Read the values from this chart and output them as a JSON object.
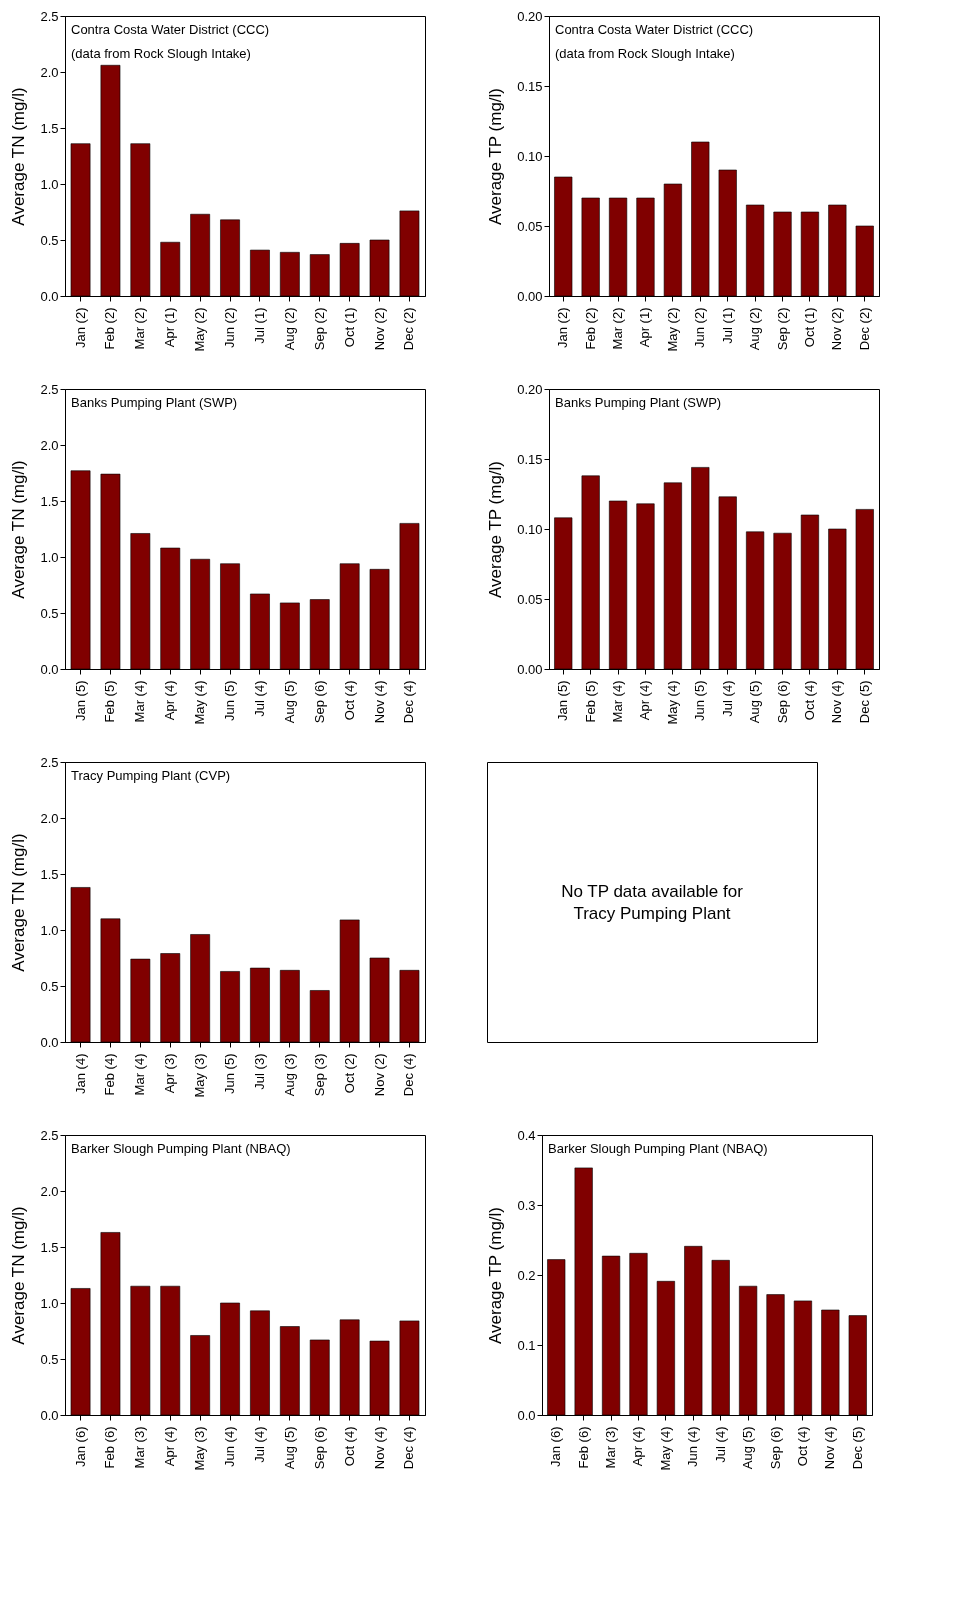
{
  "chart_data": [
    {
      "type": "bar",
      "title": "Contra Costa Water District (CCC)",
      "subtitle": "(data from Rock Slough Intake)",
      "ylabel": "Average TN (mg/l)",
      "categories": [
        "Jan (2)",
        "Feb (2)",
        "Mar (2)",
        "Apr (1)",
        "May (2)",
        "Jun (2)",
        "Jul (1)",
        "Aug (2)",
        "Sep (2)",
        "Oct (1)",
        "Nov (2)",
        "Dec (2)"
      ],
      "values": [
        1.36,
        2.06,
        1.36,
        0.48,
        0.73,
        0.68,
        0.41,
        0.39,
        0.37,
        0.47,
        0.5,
        0.76
      ],
      "color": "#800000",
      "ylim": [
        0,
        2.5
      ],
      "yticks": [
        {
          "value": 0,
          "label": "0.0"
        },
        0.5,
        {
          "value": 1,
          "label": "1.0"
        },
        1.5,
        {
          "value": 2,
          "label": "2.0"
        },
        2.5
      ],
      "grid": false
    },
    {
      "type": "bar",
      "title": "Contra Costa Water District (CCC)",
      "subtitle": "(data from Rock Slough Intake)",
      "ylabel": "Average TP (mg/l)",
      "categories": [
        "Jan (2)",
        "Feb (2)",
        "Mar (2)",
        "Apr (1)",
        "May (2)",
        "Jun (2)",
        "Jul (1)",
        "Aug (2)",
        "Sep (2)",
        "Oct (1)",
        "Nov (2)",
        "Dec (2)"
      ],
      "values": [
        0.085,
        0.07,
        0.07,
        0.07,
        0.08,
        0.11,
        0.09,
        0.065,
        0.06,
        0.06,
        0.065,
        0.05
      ],
      "color": "#800000",
      "ylim": [
        0,
        0.2
      ],
      "yticks": [
        {
          "value": 0,
          "label": "0.00"
        },
        0.05,
        {
          "value": 0.1,
          "label": "0.10"
        },
        0.15,
        {
          "value": 0.2,
          "label": "0.20"
        }
      ],
      "grid": false
    },
    {
      "type": "bar",
      "title": "Banks Pumping Plant (SWP)",
      "ylabel": "Average TN (mg/l)",
      "categories": [
        "Jan (5)",
        "Feb (5)",
        "Mar (4)",
        "Apr (4)",
        "May (4)",
        "Jun (5)",
        "Jul (4)",
        "Aug (5)",
        "Sep (6)",
        "Oct (4)",
        "Nov (4)",
        "Dec (4)"
      ],
      "values": [
        1.77,
        1.74,
        1.21,
        1.08,
        0.98,
        0.94,
        0.67,
        0.59,
        0.62,
        0.94,
        0.89,
        1.3
      ],
      "color": "#800000",
      "ylim": [
        0,
        2.5
      ],
      "yticks": [
        {
          "value": 0,
          "label": "0.0"
        },
        0.5,
        {
          "value": 1,
          "label": "1.0"
        },
        1.5,
        {
          "value": 2,
          "label": "2.0"
        },
        2.5
      ],
      "grid": false
    },
    {
      "type": "bar",
      "title": "Banks Pumping Plant (SWP)",
      "ylabel": "Average TP (mg/l)",
      "categories": [
        "Jan (5)",
        "Feb (5)",
        "Mar (4)",
        "Apr (4)",
        "May (4)",
        "Jun (5)",
        "Jul (4)",
        "Aug (5)",
        "Sep (6)",
        "Oct (4)",
        "Nov (4)",
        "Dec (5)"
      ],
      "values": [
        0.108,
        0.138,
        0.12,
        0.118,
        0.133,
        0.144,
        0.123,
        0.098,
        0.097,
        0.11,
        0.1,
        0.114
      ],
      "color": "#800000",
      "ylim": [
        0,
        0.2
      ],
      "yticks": [
        {
          "value": 0,
          "label": "0.00"
        },
        0.05,
        {
          "value": 0.1,
          "label": "0.10"
        },
        0.15,
        {
          "value": 0.2,
          "label": "0.20"
        }
      ],
      "grid": false
    },
    {
      "type": "bar",
      "title": "Tracy Pumping Plant (CVP)",
      "ylabel": "Average TN (mg/l)",
      "categories": [
        "Jan (4)",
        "Feb (4)",
        "Mar (4)",
        "Apr (3)",
        "May (3)",
        "Jun (5)",
        "Jul (3)",
        "Aug (3)",
        "Sep (3)",
        "Oct (2)",
        "Nov (2)",
        "Dec (4)"
      ],
      "values": [
        1.38,
        1.1,
        0.74,
        0.79,
        0.96,
        0.63,
        0.66,
        0.64,
        0.46,
        1.09,
        0.75,
        0.64
      ],
      "color": "#800000",
      "ylim": [
        0,
        2.5
      ],
      "yticks": [
        {
          "value": 0,
          "label": "0.0"
        },
        0.5,
        {
          "value": 1,
          "label": "1.0"
        },
        1.5,
        {
          "value": 2,
          "label": "2.0"
        },
        2.5
      ],
      "grid": false
    },
    {
      "type": "other",
      "annotations": [
        "No TP data available for",
        "Tracy Pumping Plant"
      ]
    },
    {
      "type": "bar",
      "title": "Barker Slough Pumping Plant (NBAQ)",
      "ylabel": "Average TN (mg/l)",
      "categories": [
        "Jan (6)",
        "Feb (6)",
        "Mar (3)",
        "Apr (4)",
        "May (3)",
        "Jun (4)",
        "Jul (4)",
        "Aug (5)",
        "Sep (6)",
        "Oct (4)",
        "Nov (4)",
        "Dec (4)"
      ],
      "values": [
        1.13,
        1.63,
        1.15,
        1.15,
        0.71,
        1.0,
        0.93,
        0.79,
        0.67,
        0.85,
        0.66,
        0.84
      ],
      "color": "#800000",
      "ylim": [
        0,
        2.5
      ],
      "yticks": [
        {
          "value": 0,
          "label": "0.0"
        },
        0.5,
        {
          "value": 1,
          "label": "1.0"
        },
        1.5,
        {
          "value": 2,
          "label": "2.0"
        },
        2.5
      ],
      "grid": false
    },
    {
      "type": "bar",
      "title": "Barker Slough Pumping Plant (NBAQ)",
      "ylabel": "Average TP (mg/l)",
      "categories": [
        "Jan (6)",
        "Feb (6)",
        "Mar (3)",
        "Apr (4)",
        "May (4)",
        "Jun (4)",
        "Jul (4)",
        "Aug (5)",
        "Sep (6)",
        "Oct (4)",
        "Nov (4)",
        "Dec (5)"
      ],
      "values": [
        0.222,
        0.353,
        0.227,
        0.231,
        0.191,
        0.241,
        0.221,
        0.184,
        0.172,
        0.163,
        0.15,
        0.142
      ],
      "color": "#800000",
      "ylim": [
        0,
        0.4
      ],
      "yticks": [
        {
          "value": 0,
          "label": "0.0"
        },
        0.1,
        0.2,
        0.3,
        0.4
      ],
      "grid": false
    }
  ]
}
